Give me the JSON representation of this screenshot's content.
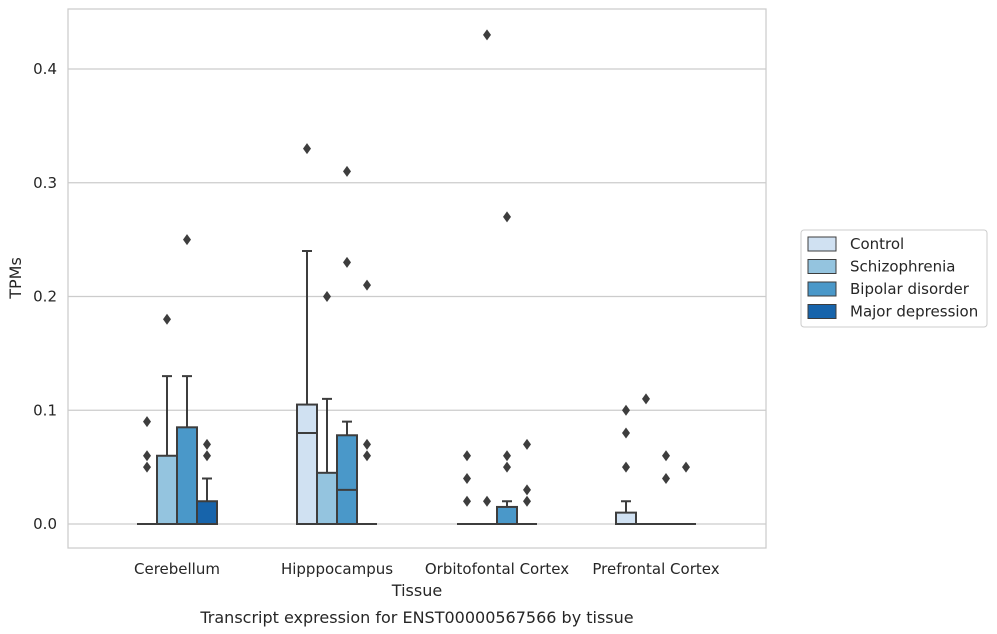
{
  "chart_data": {
    "type": "boxplot",
    "xlabel": "Tissue",
    "ylabel": "TPMs",
    "caption": "Transcript expression for ENST00000567566 by tissue",
    "ylim": [
      -0.02,
      0.455
    ],
    "yticks": [
      0.0,
      0.1,
      0.2,
      0.3,
      0.4
    ],
    "ytick_labels": [
      "0.0",
      "0.1",
      "0.2",
      "0.3",
      "0.4"
    ],
    "grid": "horizontal",
    "legend_position": "right",
    "categories": [
      "Cerebellum",
      "Hipppocampus",
      "Orbitofontal Cortex",
      "Prefrontal Cortex"
    ],
    "series": [
      {
        "name": "Control",
        "color": "#d0e1f2",
        "boxes": [
          {
            "category": "Cerebellum",
            "whislo": 0,
            "q1": 0,
            "med": 0,
            "q3": 0,
            "whishi": 0,
            "fliers": [
              0.05,
              0.06,
              0.09
            ]
          },
          {
            "category": "Hipppocampus",
            "whislo": 0,
            "q1": 0,
            "med": 0.08,
            "q3": 0.105,
            "whishi": 0.24,
            "fliers": [
              0.33
            ]
          },
          {
            "category": "Orbitofontal Cortex",
            "whislo": 0,
            "q1": 0,
            "med": 0,
            "q3": 0,
            "whishi": 0,
            "fliers": [
              0.02,
              0.04,
              0.06
            ]
          },
          {
            "category": "Prefrontal Cortex",
            "whislo": 0,
            "q1": 0,
            "med": 0,
            "q3": 0.01,
            "whishi": 0.02,
            "fliers": [
              0.05,
              0.08,
              0.1
            ]
          }
        ]
      },
      {
        "name": "Schizophrenia",
        "color": "#94c4df",
        "boxes": [
          {
            "category": "Cerebellum",
            "whislo": 0,
            "q1": 0,
            "med": 0,
            "q3": 0.06,
            "whishi": 0.13,
            "fliers": [
              0.18
            ]
          },
          {
            "category": "Hipppocampus",
            "whislo": 0,
            "q1": 0,
            "med": 0,
            "q3": 0.045,
            "whishi": 0.11,
            "fliers": [
              0.2
            ]
          },
          {
            "category": "Orbitofontal Cortex",
            "whislo": 0,
            "q1": 0,
            "med": 0,
            "q3": 0,
            "whishi": 0,
            "fliers": [
              0.02,
              0.43
            ]
          },
          {
            "category": "Prefrontal Cortex",
            "whislo": 0,
            "q1": 0,
            "med": 0,
            "q3": 0,
            "whishi": 0,
            "fliers": [
              0.11
            ]
          }
        ]
      },
      {
        "name": "Bipolar disorder",
        "color": "#4a98c9",
        "boxes": [
          {
            "category": "Cerebellum",
            "whislo": 0,
            "q1": 0,
            "med": 0,
            "q3": 0.085,
            "whishi": 0.13,
            "fliers": [
              0.25
            ]
          },
          {
            "category": "Hipppocampus",
            "whislo": 0,
            "q1": 0,
            "med": 0.03,
            "q3": 0.078,
            "whishi": 0.09,
            "fliers": [
              0.23,
              0.31
            ]
          },
          {
            "category": "Orbitofontal Cortex",
            "whislo": 0,
            "q1": 0,
            "med": 0,
            "q3": 0.015,
            "whishi": 0.02,
            "fliers": [
              0.05,
              0.06,
              0.27
            ]
          },
          {
            "category": "Prefrontal Cortex",
            "whislo": 0,
            "q1": 0,
            "med": 0,
            "q3": 0,
            "whishi": 0,
            "fliers": [
              0.04,
              0.06
            ]
          }
        ]
      },
      {
        "name": "Major depression",
        "color": "#1764ab",
        "boxes": [
          {
            "category": "Cerebellum",
            "whislo": 0,
            "q1": 0,
            "med": 0,
            "q3": 0.02,
            "whishi": 0.04,
            "fliers": [
              0.06,
              0.07
            ]
          },
          {
            "category": "Hipppocampus",
            "whislo": 0,
            "q1": 0,
            "med": 0,
            "q3": 0,
            "whishi": 0,
            "fliers": [
              0.06,
              0.07,
              0.21
            ]
          },
          {
            "category": "Orbitofontal Cortex",
            "whislo": 0,
            "q1": 0,
            "med": 0,
            "q3": 0,
            "whishi": 0,
            "fliers": [
              0.02,
              0.03,
              0.07
            ]
          },
          {
            "category": "Prefrontal Cortex",
            "whislo": 0,
            "q1": 0,
            "med": 0,
            "q3": 0,
            "whishi": 0,
            "fliers": [
              0.05
            ]
          }
        ]
      }
    ]
  }
}
